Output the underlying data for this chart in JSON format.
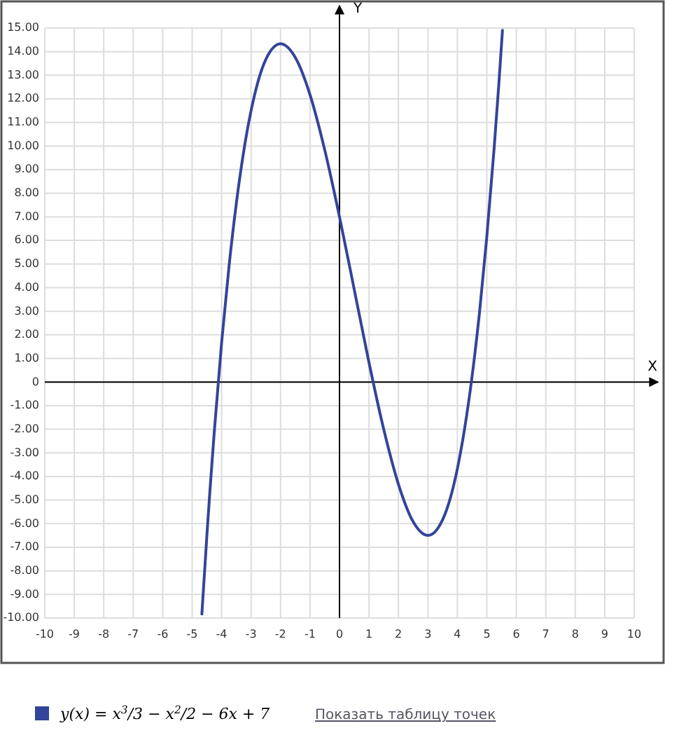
{
  "chart_data": {
    "type": "line",
    "xlabel": "X",
    "ylabel": "Y",
    "xlim": [
      -10,
      10
    ],
    "xticks": [
      -10,
      -9,
      -8,
      -7,
      -6,
      -5,
      -4,
      -3,
      -2,
      -1,
      0,
      1,
      2,
      3,
      4,
      5,
      6,
      7,
      8,
      9,
      10
    ],
    "ylim": [
      -10,
      15
    ],
    "yticks": [
      {
        "value": 15,
        "label": "15.00"
      },
      {
        "value": 14,
        "label": "14.00"
      },
      {
        "value": 13,
        "label": "13.00"
      },
      {
        "value": 12,
        "label": "12.00"
      },
      {
        "value": 11,
        "label": "11.00"
      },
      {
        "value": 10,
        "label": "10.00"
      },
      {
        "value": 9,
        "label": "9.00"
      },
      {
        "value": 8,
        "label": "8.00"
      },
      {
        "value": 7,
        "label": "7.00"
      },
      {
        "value": 6,
        "label": "6.00"
      },
      {
        "value": 5,
        "label": "5.00"
      },
      {
        "value": 4,
        "label": "4.00"
      },
      {
        "value": 3,
        "label": "3.00"
      },
      {
        "value": 2,
        "label": "2.00"
      },
      {
        "value": 1,
        "label": "1.00"
      },
      0,
      {
        "value": -1,
        "label": "-1.00"
      },
      {
        "value": -2,
        "label": "-2.00"
      },
      {
        "value": -3,
        "label": "-3.00"
      },
      {
        "value": -4,
        "label": "-4.00"
      },
      {
        "value": -5,
        "label": "-5.00"
      },
      {
        "value": -6,
        "label": "-6.00"
      },
      {
        "value": -7,
        "label": "-7.00"
      },
      {
        "value": -8,
        "label": "-8.00"
      },
      {
        "value": -9,
        "label": "-9.00"
      },
      {
        "value": -10,
        "label": "-10.00"
      }
    ],
    "grid": true,
    "legend": "bottom",
    "marker": "none",
    "line_style": "solid",
    "x": [
      -4.67,
      -4.5,
      -4.4,
      -4.25,
      -4,
      -3.75,
      -3.5,
      -3.25,
      -3,
      -2.5,
      -2,
      -1.5,
      -1,
      -0.5,
      0,
      0.5,
      1,
      1.5,
      2,
      2.5,
      3,
      3.5,
      4,
      4.25,
      4.5,
      4.75,
      5,
      5.25,
      5.4,
      5.53
    ],
    "series": [
      {
        "name": "y(x) = x$^{3}$/3 − x$^{2}$/2 − 6x + 7",
        "color": "#33449a",
        "values": [
          -9.83,
          -6.5,
          -4.67,
          -2.12,
          1.67,
          4.89,
          7.58,
          9.78,
          11.5,
          13.67,
          14.33,
          13.75,
          12.17,
          9.83,
          7,
          3.92,
          0.83,
          -2,
          -4.33,
          -5.92,
          -6.5,
          -5.83,
          -3.67,
          -1.94,
          0.25,
          2.94,
          6.17,
          9.95,
          12.51,
          14.9
        ]
      }
    ],
    "annotations": [
      "Показать таблицу точек"
    ]
  }
}
